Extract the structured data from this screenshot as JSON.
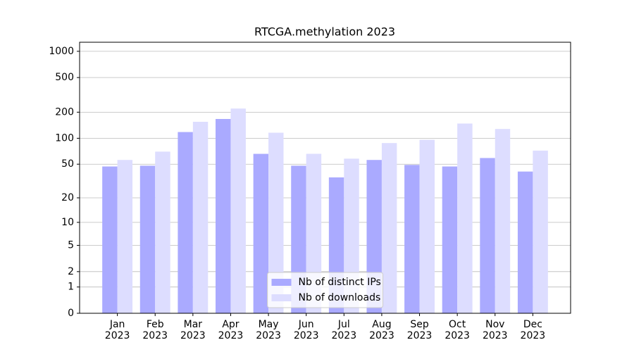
{
  "chart_data": {
    "type": "bar",
    "title": "RTCGA.methylation 2023",
    "categories": [
      "Jan\n2023",
      "Feb\n2023",
      "Mar\n2023",
      "Apr\n2023",
      "May\n2023",
      "Jun\n2023",
      "Jul\n2023",
      "Aug\n2023",
      "Sep\n2023",
      "Oct\n2023",
      "Nov\n2023",
      "Dec\n2023"
    ],
    "series": [
      {
        "name": "Nb of distinct IPs",
        "color": "#aaaaff",
        "values": [
          47,
          48,
          118,
          167,
          66,
          48,
          35,
          56,
          49,
          47,
          59,
          41
        ]
      },
      {
        "name": "Nb of downloads",
        "color": "#ddddff",
        "values": [
          56,
          70,
          155,
          220,
          116,
          66,
          58,
          88,
          96,
          148,
          128,
          72
        ]
      }
    ],
    "yscale": "log1p",
    "ylim": [
      0,
      1270
    ],
    "yticks": [
      0,
      1,
      2,
      5,
      10,
      20,
      50,
      100,
      200,
      500,
      1000
    ],
    "grid": true,
    "legend": "lower center"
  }
}
